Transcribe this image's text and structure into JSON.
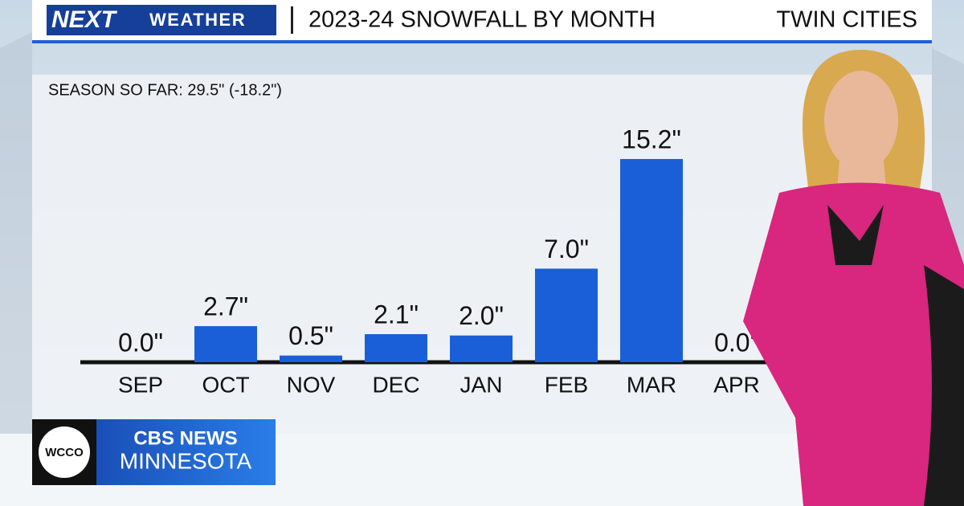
{
  "header": {
    "brand": "NEXT",
    "brand_sub": "WEATHER",
    "location": "TWIN CITIES"
  },
  "chart_data": {
    "type": "bar",
    "title": "2023-24 SNOWFALL BY MONTH",
    "subtitle": "SEASON SO FAR: 29.5\" (-18.2\")",
    "categories": [
      "SEP",
      "OCT",
      "NOV",
      "DEC",
      "JAN",
      "FEB",
      "MAR",
      "APR"
    ],
    "values": [
      0.0,
      2.7,
      0.5,
      2.1,
      2.0,
      7.0,
      15.2,
      0.0
    ],
    "value_labels": [
      "0.0\"",
      "2.7\"",
      "0.5\"",
      "2.1\"",
      "2.0\"",
      "7.0\"",
      "15.2\"",
      "0.0\""
    ],
    "color": "#1a5fd8"
  },
  "footer": {
    "station": "WCCO",
    "network": "CBS NEWS",
    "region": "MINNESOTA"
  }
}
